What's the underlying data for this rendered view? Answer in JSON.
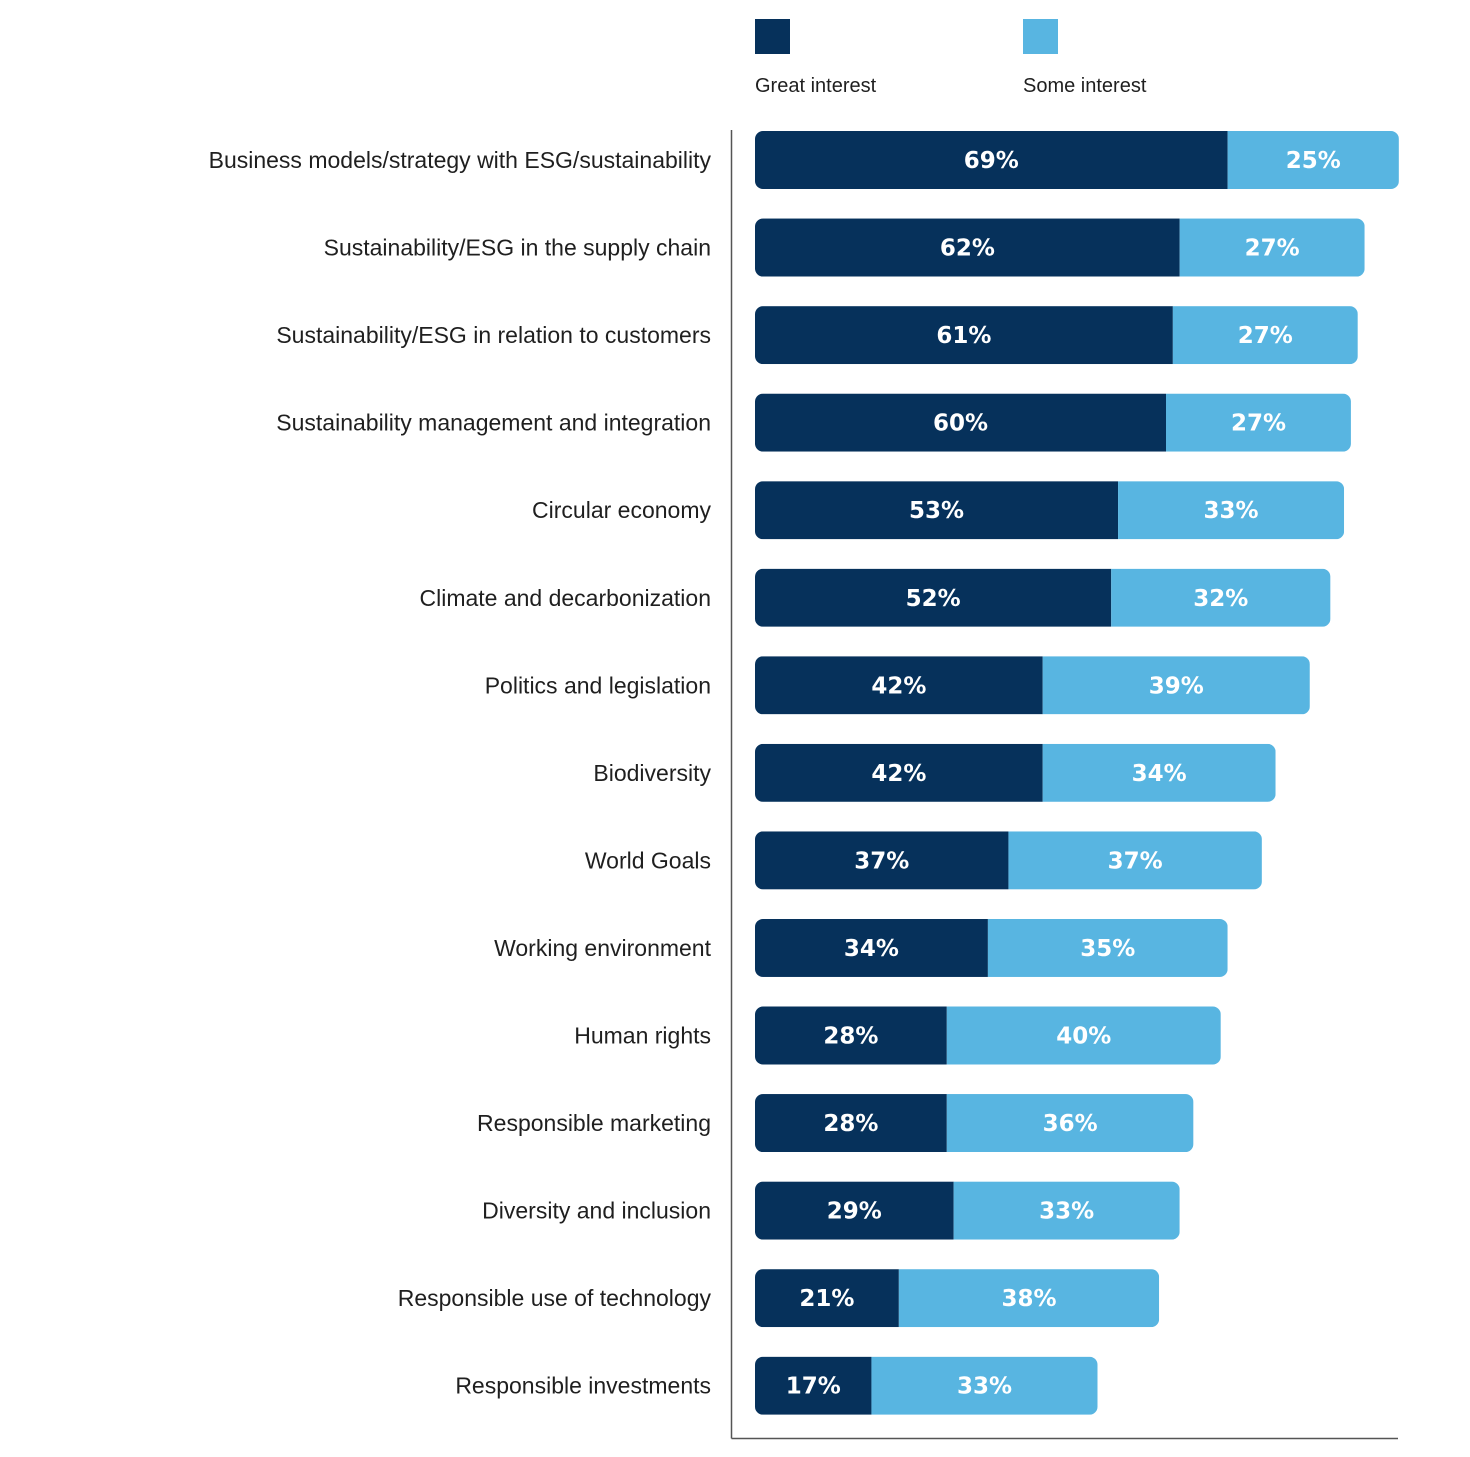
{
  "chart_data": {
    "type": "bar",
    "orientation": "horizontal",
    "stacked": true,
    "title": "",
    "xlabel": "",
    "ylabel": "",
    "unit": "%",
    "grid": false,
    "legend_position": "top",
    "categories": [
      "Business models/strategy with ESG/sustainability",
      "Sustainability/ESG in the supply chain",
      "Sustainability/ESG in relation to customers",
      "Sustainability management and integration",
      "Circular economy",
      "Climate and decarbonization",
      "Politics and legislation",
      "Biodiversity",
      "World Goals",
      "Working environment",
      "Human rights",
      "Responsible marketing",
      "Diversity and inclusion",
      "Responsible use of technology",
      "Responsible investments"
    ],
    "series": [
      {
        "name": "Great interest",
        "color": "#06315b",
        "values": [
          69,
          62,
          61,
          60,
          53,
          52,
          42,
          42,
          37,
          34,
          28,
          28,
          29,
          21,
          17
        ]
      },
      {
        "name": "Some interest",
        "color": "#58b5e1",
        "values": [
          25,
          27,
          27,
          27,
          33,
          32,
          39,
          34,
          37,
          35,
          40,
          36,
          33,
          38,
          33
        ]
      }
    ],
    "xlim": [
      0,
      100
    ]
  },
  "colors": {
    "axis": "#555555",
    "text": "#1f1f1f",
    "value_text": "#ffffff"
  }
}
